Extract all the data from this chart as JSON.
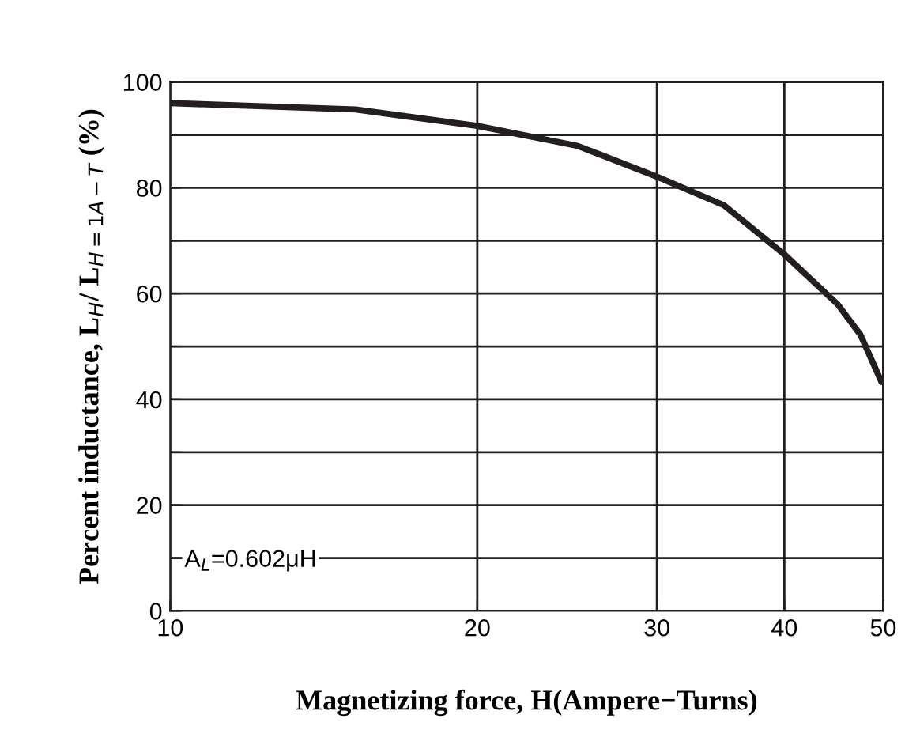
{
  "chart_data": {
    "type": "line",
    "xlabel": "Magnetizing force, H(Ampere−Turns)",
    "ylabel": "Percent inductance, L$_{H}$/ L$_{H=1A−T}$ (%)",
    "log": "x",
    "xlim": [
      10,
      50
    ],
    "xticks": [
      10,
      20,
      30,
      40,
      50
    ],
    "ylim": [
      0,
      100
    ],
    "yticks": [
      0,
      {
        "value": 10,
        "label": null
      },
      20,
      {
        "value": 30,
        "label": null
      },
      40,
      {
        "value": 50,
        "label": null
      },
      60,
      {
        "value": 70,
        "label": null
      },
      80,
      {
        "value": 90,
        "label": null
      },
      100
    ],
    "grid": true,
    "marker": "none",
    "line_style": "solid",
    "series": [
      {
        "color": "#231f20",
        "x": [
          10,
          15.2,
          20,
          25.1,
          30,
          34.9,
          40,
          45.1,
          47.5,
          49.8
        ],
        "values": [
          96.0,
          94.8,
          91.7,
          87.9,
          82.1,
          76.7,
          67.4,
          58.0,
          52.2,
          43.3
        ]
      }
    ],
    "annotations": [
      "A$_{L}$=0.602μH"
    ]
  }
}
